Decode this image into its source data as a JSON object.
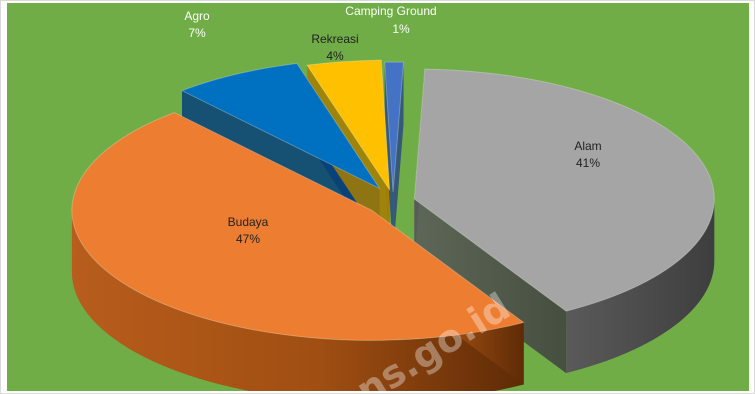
{
  "chart_data": {
    "type": "pie",
    "style": "3d-exploded",
    "slices": [
      {
        "label": "Alam",
        "value": 41,
        "color": "#a5a5a5"
      },
      {
        "label": "Budaya",
        "value": 47,
        "color": "#ed7d31"
      },
      {
        "label": "Agro",
        "value": 7,
        "color": "#0070c0"
      },
      {
        "label": "Rekreasi",
        "value": 4,
        "color": "#ffc000"
      },
      {
        "label": "Camping Ground",
        "value": 1,
        "color": "#4472c4"
      }
    ],
    "value_suffix": "%",
    "background": "#70ad47",
    "legend": "none"
  },
  "watermark": "ns.go.id"
}
